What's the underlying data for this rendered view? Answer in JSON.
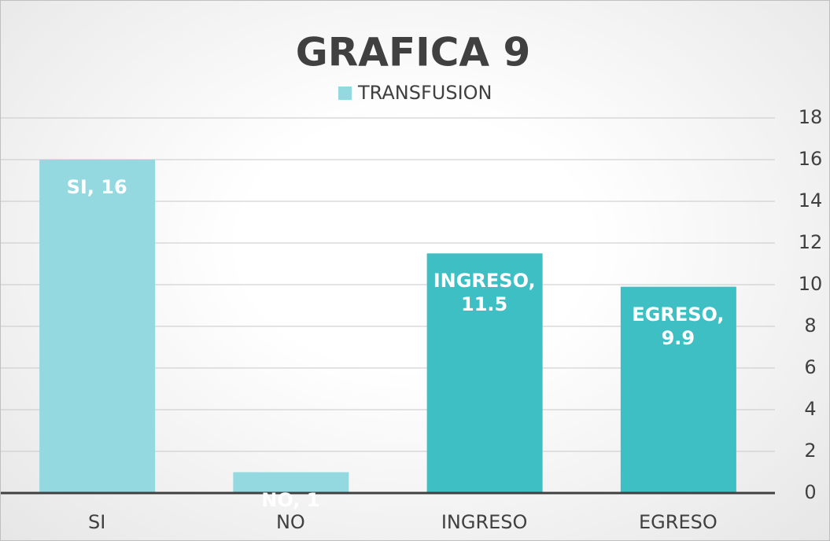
{
  "chart_data": {
    "type": "bar",
    "title": "GRAFICA 9",
    "categories": [
      "SI",
      "NO",
      "INGRESO",
      "EGRESO"
    ],
    "series": [
      {
        "name": "TRANSFUSION",
        "color": "#93d9df",
        "values": [
          16,
          1,
          11.5,
          9.9
        ],
        "value_labels": [
          "SI, 16",
          "NO, 1",
          "INGRESO, 11.5",
          "EGRESO, 9.9"
        ]
      }
    ],
    "colors": [
      "#93d9df",
      "#93d9df",
      "#3dbfc4",
      "#3dbfc4"
    ],
    "ylim": [
      0,
      18
    ],
    "yticks": [
      0,
      2,
      4,
      6,
      8,
      10,
      12,
      14,
      16,
      18
    ],
    "grid": true,
    "legend": "top",
    "y_axis_side": "right"
  }
}
